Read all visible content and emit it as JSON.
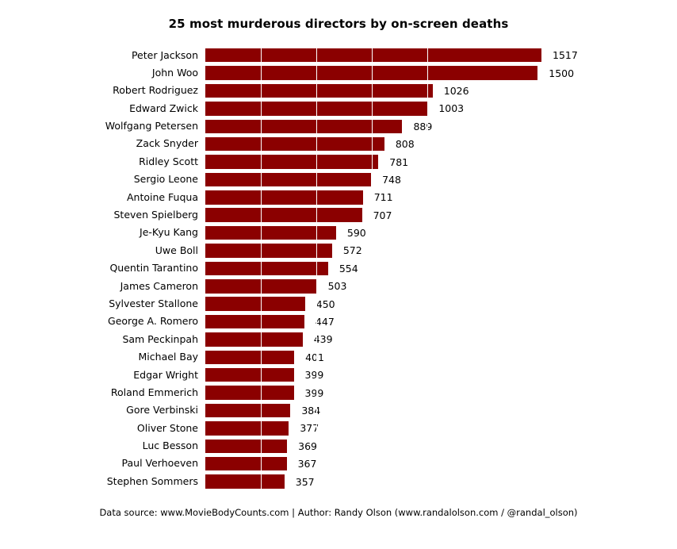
{
  "chart_data": {
    "type": "bar",
    "orientation": "horizontal",
    "title": "25 most murderous directors by on-screen deaths",
    "categories": [
      "Peter Jackson",
      "John Woo",
      "Robert Rodriguez",
      "Edward Zwick",
      "Wolfgang Petersen",
      "Zack Snyder",
      "Ridley Scott",
      "Sergio Leone",
      "Antoine Fuqua",
      "Steven Spielberg",
      "Je-Kyu Kang",
      "Uwe Boll",
      "Quentin Tarantino",
      "James Cameron",
      "Sylvester Stallone",
      "George A. Romero",
      "Sam Peckinpah",
      "Michael Bay",
      "Edgar Wright",
      "Roland Emmerich",
      "Gore Verbinski",
      "Oliver Stone",
      "Luc Besson",
      "Paul Verhoeven",
      "Stephen Sommers"
    ],
    "values": [
      1517,
      1500,
      1026,
      1003,
      889,
      808,
      781,
      748,
      711,
      707,
      590,
      572,
      554,
      503,
      450,
      447,
      439,
      401,
      399,
      399,
      384,
      377,
      369,
      367,
      357
    ],
    "xlim": [
      0,
      1600
    ],
    "gridline_values": [
      250,
      500,
      750,
      1000
    ],
    "gridline_color": "#FFFFFF",
    "bar_color": "#8B0000",
    "value_labels": "shown at bar ends",
    "legend": "none",
    "xlabel": "",
    "ylabel": ""
  },
  "footer": {
    "credit": "Data source: www.MovieBodyCounts.com | Author: Randy Olson (www.randalolson.com / @randal_olson)"
  }
}
